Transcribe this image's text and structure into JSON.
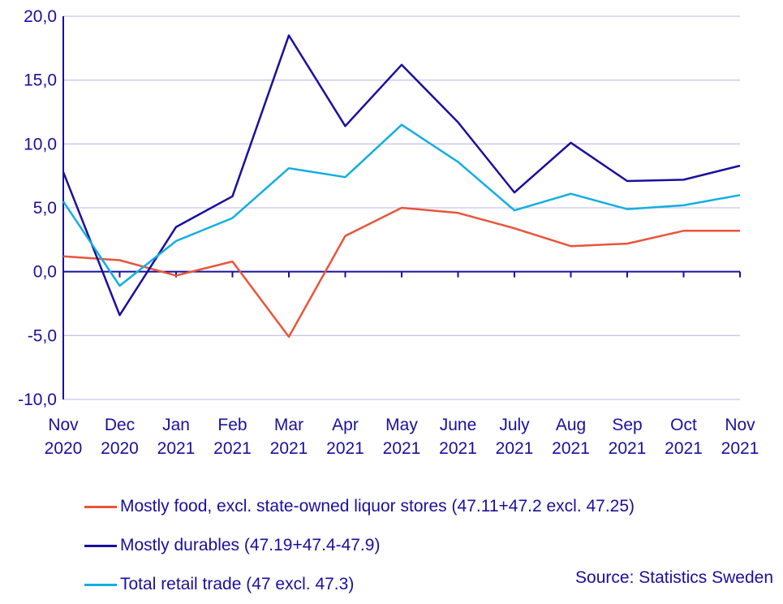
{
  "chart_data": {
    "type": "line",
    "categories": [
      [
        "Nov",
        "2020"
      ],
      [
        "Dec",
        "2020"
      ],
      [
        "Jan",
        "2021"
      ],
      [
        "Feb",
        "2021"
      ],
      [
        "Mar",
        "2021"
      ],
      [
        "Apr",
        "2021"
      ],
      [
        "May",
        "2021"
      ],
      [
        "June",
        "2021"
      ],
      [
        "July",
        "2021"
      ],
      [
        "Aug",
        "2021"
      ],
      [
        "Sep",
        "2021"
      ],
      [
        "Oct",
        "2021"
      ],
      [
        "Nov",
        "2021"
      ]
    ],
    "ylim": [
      -10,
      20
    ],
    "yticks": [
      "20,0",
      "15,0",
      "10,0",
      "5,0",
      "0,0",
      "-5,0",
      "-10,0"
    ],
    "ytick_values": [
      20,
      15,
      10,
      5,
      0,
      -5,
      -10
    ],
    "grid": true,
    "legend_position": "bottom",
    "series": [
      {
        "name": "Mostly food, excl. state-owned liquor stores (47.11+47.2 excl. 47.25)",
        "color": "#e8553a",
        "values": [
          1.2,
          0.9,
          -0.3,
          0.8,
          -5.1,
          2.8,
          5.0,
          4.6,
          3.4,
          2.0,
          2.2,
          3.2,
          3.2
        ]
      },
      {
        "name": "Mostly durables (47.19+47.4-47.9)",
        "color": "#1a0f9e",
        "values": [
          7.8,
          -3.4,
          3.5,
          5.9,
          18.5,
          11.4,
          16.2,
          11.7,
          6.2,
          10.1,
          7.1,
          7.2,
          8.3
        ]
      },
      {
        "name": "Total retail trade (47 excl. 47.3)",
        "color": "#14aee0",
        "values": [
          5.5,
          -1.1,
          2.4,
          4.2,
          8.1,
          7.4,
          11.5,
          8.6,
          4.8,
          6.1,
          4.9,
          5.2,
          6.0
        ]
      }
    ]
  },
  "source": "Source: Statistics Sweden"
}
